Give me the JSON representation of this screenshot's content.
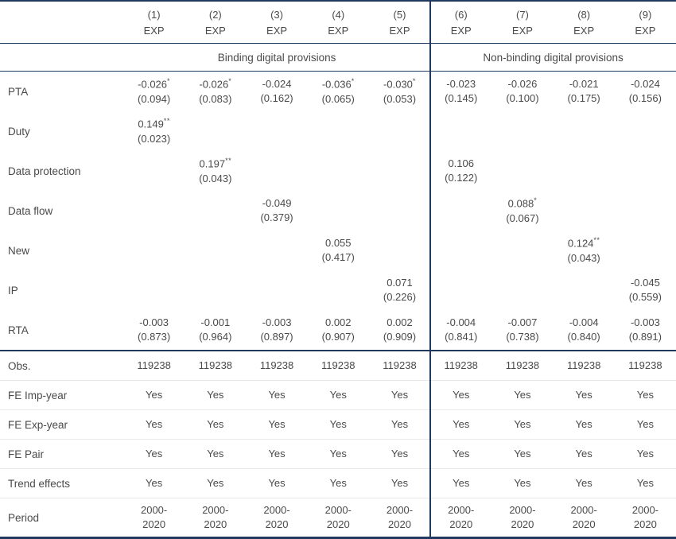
{
  "colors": {
    "border_navy": "#1f3a5e",
    "text": "#4a4a4a",
    "summary_row_divider": "#e8e8e8"
  },
  "table": {
    "columns": [
      {
        "number": "(1)",
        "dep_var": "EXP"
      },
      {
        "number": "(2)",
        "dep_var": "EXP"
      },
      {
        "number": "(3)",
        "dep_var": "EXP"
      },
      {
        "number": "(4)",
        "dep_var": "EXP"
      },
      {
        "number": "(5)",
        "dep_var": "EXP"
      },
      {
        "number": "(6)",
        "dep_var": "EXP"
      },
      {
        "number": "(7)",
        "dep_var": "EXP"
      },
      {
        "number": "(8)",
        "dep_var": "EXP"
      },
      {
        "number": "(9)",
        "dep_var": "EXP"
      }
    ],
    "group_headers": [
      {
        "label": "Binding digital provisions",
        "col_span": 5
      },
      {
        "label": "Non-binding digital provisions",
        "col_span": 4
      }
    ],
    "coefficient_rows": [
      {
        "label": "PTA",
        "cells": [
          {
            "col": 1,
            "coef": "-0.026",
            "stars": "*",
            "se": "(0.094)"
          },
          {
            "col": 2,
            "coef": "-0.026",
            "stars": "*",
            "se": "(0.083)"
          },
          {
            "col": 3,
            "coef": "-0.024",
            "stars": "",
            "se": "(0.162)"
          },
          {
            "col": 4,
            "coef": "-0.036",
            "stars": "*",
            "se": "(0.065)"
          },
          {
            "col": 5,
            "coef": "-0.030",
            "stars": "*",
            "se": "(0.053)"
          },
          {
            "col": 6,
            "coef": "-0.023",
            "stars": "",
            "se": "(0.145)"
          },
          {
            "col": 7,
            "coef": "-0.026",
            "stars": "",
            "se": "(0.100)"
          },
          {
            "col": 8,
            "coef": "-0.021",
            "stars": "",
            "se": "(0.175)"
          },
          {
            "col": 9,
            "coef": "-0.024",
            "stars": "",
            "se": "(0.156)"
          }
        ]
      },
      {
        "label": "Duty",
        "cells": [
          {
            "col": 1,
            "coef": "0.149",
            "stars": "**",
            "se": "(0.023)"
          }
        ]
      },
      {
        "label": "Data protection",
        "cells": [
          {
            "col": 2,
            "coef": "0.197",
            "stars": "**",
            "se": "(0.043)"
          },
          {
            "col": 6,
            "coef": "0.106",
            "stars": "",
            "se": "(0.122)"
          }
        ]
      },
      {
        "label": "Data flow",
        "cells": [
          {
            "col": 3,
            "coef": "-0.049",
            "stars": "",
            "se": "(0.379)"
          },
          {
            "col": 7,
            "coef": "0.088",
            "stars": "*",
            "se": "(0.067)"
          }
        ]
      },
      {
        "label": "New",
        "cells": [
          {
            "col": 4,
            "coef": "0.055",
            "stars": "",
            "se": "(0.417)"
          },
          {
            "col": 8,
            "coef": "0.124",
            "stars": "**",
            "se": "(0.043)"
          }
        ]
      },
      {
        "label": "IP",
        "cells": [
          {
            "col": 5,
            "coef": "0.071",
            "stars": "",
            "se": "(0.226)"
          },
          {
            "col": 9,
            "coef": "-0.045",
            "stars": "",
            "se": "(0.559)"
          }
        ]
      },
      {
        "label": "RTA",
        "cells": [
          {
            "col": 1,
            "coef": "-0.003",
            "stars": "",
            "se": "(0.873)"
          },
          {
            "col": 2,
            "coef": "-0.001",
            "stars": "",
            "se": "(0.964)"
          },
          {
            "col": 3,
            "coef": "-0.003",
            "stars": "",
            "se": "(0.897)"
          },
          {
            "col": 4,
            "coef": "0.002",
            "stars": "",
            "se": "(0.907)"
          },
          {
            "col": 5,
            "coef": "0.002",
            "stars": "",
            "se": "(0.909)"
          },
          {
            "col": 6,
            "coef": "-0.004",
            "stars": "",
            "se": "(0.841)"
          },
          {
            "col": 7,
            "coef": "-0.007",
            "stars": "",
            "se": "(0.738)"
          },
          {
            "col": 8,
            "coef": "-0.004",
            "stars": "",
            "se": "(0.840)"
          },
          {
            "col": 9,
            "coef": "-0.003",
            "stars": "",
            "se": "(0.891)"
          }
        ]
      }
    ],
    "summary_rows": [
      {
        "label": "Obs.",
        "values": [
          "119238",
          "119238",
          "119238",
          "119238",
          "119238",
          "119238",
          "119238",
          "119238",
          "119238"
        ]
      },
      {
        "label": "FE Imp-year",
        "values": [
          "Yes",
          "Yes",
          "Yes",
          "Yes",
          "Yes",
          "Yes",
          "Yes",
          "Yes",
          "Yes"
        ]
      },
      {
        "label": "FE Exp-year",
        "values": [
          "Yes",
          "Yes",
          "Yes",
          "Yes",
          "Yes",
          "Yes",
          "Yes",
          "Yes",
          "Yes"
        ]
      },
      {
        "label": "FE Pair",
        "values": [
          "Yes",
          "Yes",
          "Yes",
          "Yes",
          "Yes",
          "Yes",
          "Yes",
          "Yes",
          "Yes"
        ]
      },
      {
        "label": "Trend effects",
        "values": [
          "Yes",
          "Yes",
          "Yes",
          "Yes",
          "Yes",
          "Yes",
          "Yes",
          "Yes",
          "Yes"
        ]
      },
      {
        "label": "Period",
        "values": [
          "2000-\n2020",
          "2000-\n2020",
          "2000-\n2020",
          "2000-\n2020",
          "2000-\n2020",
          "2000-\n2020",
          "2000-\n2020",
          "2000-\n2020",
          "2000-\n2020"
        ]
      }
    ]
  }
}
